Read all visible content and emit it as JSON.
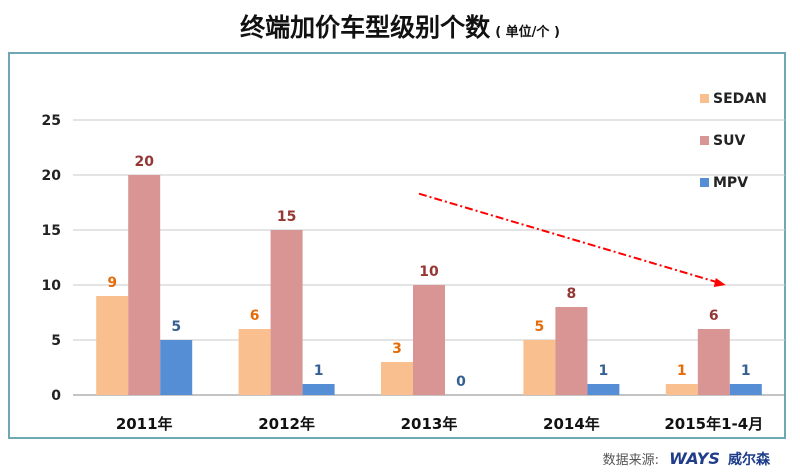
{
  "title": "终端加价车型级别个数",
  "unit": "( 单位/个 )",
  "source_label": "数据来源:",
  "source_logo": "WAYS",
  "source_name": "威尔森",
  "chart_data": {
    "type": "bar",
    "title": "终端加价车型级别个数",
    "xlabel": "",
    "ylabel": "",
    "ylim": [
      0,
      25
    ],
    "yticks": [
      0,
      5,
      10,
      15,
      20,
      25
    ],
    "grid": true,
    "legend_position": "right",
    "categories": [
      "2011年",
      "2012年",
      "2013年",
      "2014年",
      "2015年1-4月"
    ],
    "series": [
      {
        "name": "SEDAN",
        "color": "#f9bf8f",
        "label_color": "#e46c0a",
        "values": [
          9,
          6,
          3,
          5,
          1
        ]
      },
      {
        "name": "SUV",
        "color": "#d99594",
        "label_color": "#953735",
        "values": [
          20,
          15,
          10,
          8,
          6
        ]
      },
      {
        "name": "MPV",
        "color": "#558ed5",
        "label_color": "#376092",
        "values": [
          5,
          1,
          0,
          1,
          1
        ]
      }
    ],
    "annotations": [
      {
        "type": "trend-arrow",
        "direction": "down",
        "color": "#ff0000",
        "from_category": "2013年",
        "to_category": "2015年1-4月"
      }
    ]
  }
}
